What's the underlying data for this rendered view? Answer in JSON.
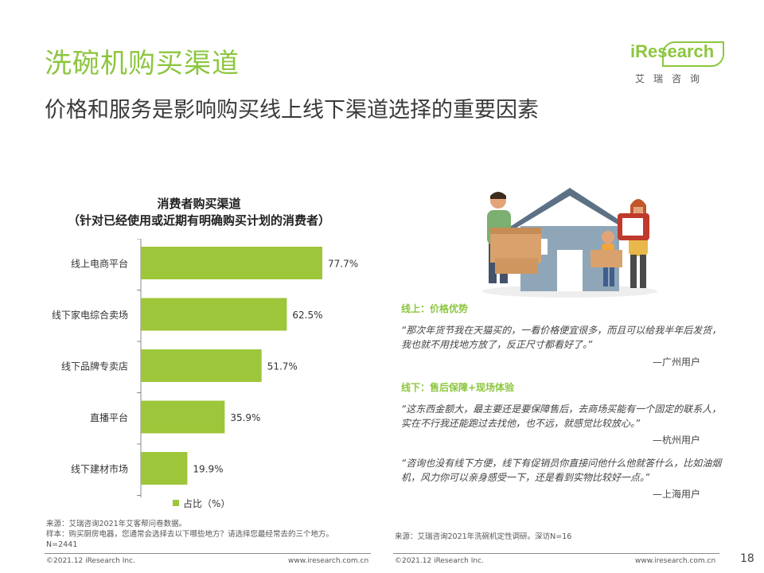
{
  "header": {
    "title": "洗碗机购买渠道",
    "subtitle": "价格和服务是影响购买线上线下渠道选择的重要因素"
  },
  "logo": {
    "brand": "iResearch",
    "brand_cn": "艾瑞咨询"
  },
  "chart_data": {
    "type": "bar",
    "orientation": "horizontal",
    "title_line1": "消费者购买渠道",
    "title_line2": "（针对已经使用或近期有明确购买计划的消费者）",
    "categories": [
      "线上电商平台",
      "线下家电综合卖场",
      "线下品牌专卖店",
      "直播平台",
      "线下建材市场"
    ],
    "values": [
      77.7,
      62.5,
      51.7,
      35.9,
      19.9
    ],
    "value_labels": [
      "77.7%",
      "62.5%",
      "51.7%",
      "35.9%",
      "19.9%"
    ],
    "series": [
      {
        "name": "占比（%）",
        "values": [
          77.7,
          62.5,
          51.7,
          35.9,
          19.9
        ]
      }
    ],
    "legend": "bottom-center",
    "bar_color": "#9dc63a",
    "xlim": [
      0,
      100
    ],
    "grid": false
  },
  "footnote": {
    "line1": "来源：艾瑞咨询2021年艾客帮问卷数据。",
    "line2": "样本：购买厨房电器，您通常会选择去以下哪些地方？请选择您最经常去的三个地方。",
    "line3": "N=2441",
    "right": "来源：艾瑞咨询2021年洗碗机定性调研。深访N=16"
  },
  "quotes": {
    "online_head": "线上：价格优势",
    "online_q1": "“那次年货节我在天猫买的，一看价格便宜很多，而且可以给我半年后发货，我也就不用找地方放了，反正尺寸都看好了。”",
    "online_a1": "—广州用户",
    "offline_head": "线下：售后保障+现场体验",
    "offline_q1": "“这东西金额大，最主要还是要保障售后，去商场买能有一个固定的联系人，实在不行我还能跑过去找他，也不远，就感觉比较放心。”",
    "offline_a1": "—杭州用户",
    "offline_q2": "“咨询也没有线下方便，线下有促销员你直接问他什么他就答什么，比如油烟机，风力你可以亲身感受一下，还是看到实物比较好一点。”",
    "offline_a2": "—上海用户"
  },
  "footer": {
    "left_copyright": "©2021.12 iResearch Inc.",
    "left_url": "www.iresearch.com.cn",
    "right_copyright": "©2021.12 iResearch Inc.",
    "right_url": "www.iresearch.com.cn",
    "page_number": "18"
  }
}
